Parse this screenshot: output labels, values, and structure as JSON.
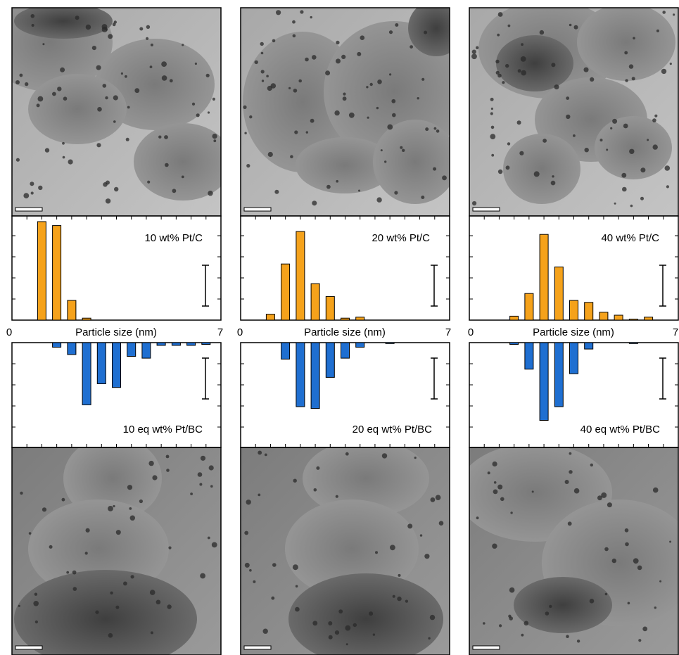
{
  "colors": {
    "upper_bars": "#f5a21b",
    "lower_bars": "#1f6fd1",
    "frame": "#000000"
  },
  "shared_axis": {
    "xlabel": "Particle size (nm)",
    "xmin_label": "0",
    "xmax_label": "7",
    "xlim": [
      0,
      7
    ]
  },
  "chart_data": [
    {
      "type": "bar",
      "panel": "upper-left",
      "label": "10 wt% Pt/C",
      "direction": "up",
      "x": [
        1.0,
        1.5,
        2.0,
        2.5,
        3.0
      ],
      "values": [
        1.0,
        0.96,
        0.2,
        0.02,
        0.0
      ]
    },
    {
      "type": "bar",
      "panel": "upper-middle",
      "label": "20 wt% Pt/C",
      "direction": "up",
      "x": [
        1.0,
        1.5,
        2.0,
        2.5,
        3.0,
        3.5,
        4.0
      ],
      "values": [
        0.06,
        0.57,
        0.9,
        0.37,
        0.24,
        0.02,
        0.03
      ]
    },
    {
      "type": "bar",
      "panel": "upper-right",
      "label": "40 wt% Pt/C",
      "direction": "up",
      "x": [
        1.5,
        2.0,
        2.5,
        3.0,
        3.5,
        4.0,
        4.5,
        5.0,
        5.5,
        6.0
      ],
      "values": [
        0.04,
        0.27,
        0.87,
        0.54,
        0.2,
        0.18,
        0.08,
        0.05,
        0.01,
        0.03
      ]
    },
    {
      "type": "bar",
      "panel": "lower-left",
      "label": "10 eq wt% Pt/BC",
      "direction": "down",
      "x": [
        1.5,
        2.0,
        2.5,
        3.0,
        3.5,
        4.0,
        4.5,
        5.0,
        5.5,
        6.0,
        6.5
      ],
      "values": [
        0.05,
        0.13,
        0.68,
        0.45,
        0.49,
        0.15,
        0.17,
        0.03,
        0.03,
        0.03,
        0.02
      ]
    },
    {
      "type": "bar",
      "panel": "lower-middle",
      "label": "20 eq wt% Pt/BC",
      "direction": "down",
      "x": [
        1.5,
        2.0,
        2.5,
        3.0,
        3.5,
        4.0,
        5.0
      ],
      "values": [
        0.18,
        0.7,
        0.72,
        0.38,
        0.17,
        0.05,
        0.01
      ]
    },
    {
      "type": "bar",
      "panel": "lower-right",
      "label": "40 eq wt% Pt/BC",
      "direction": "down",
      "x": [
        1.5,
        2.0,
        2.5,
        3.0,
        3.5,
        4.0,
        5.5
      ],
      "values": [
        0.02,
        0.29,
        0.85,
        0.7,
        0.34,
        0.07,
        0.01
      ]
    }
  ]
}
